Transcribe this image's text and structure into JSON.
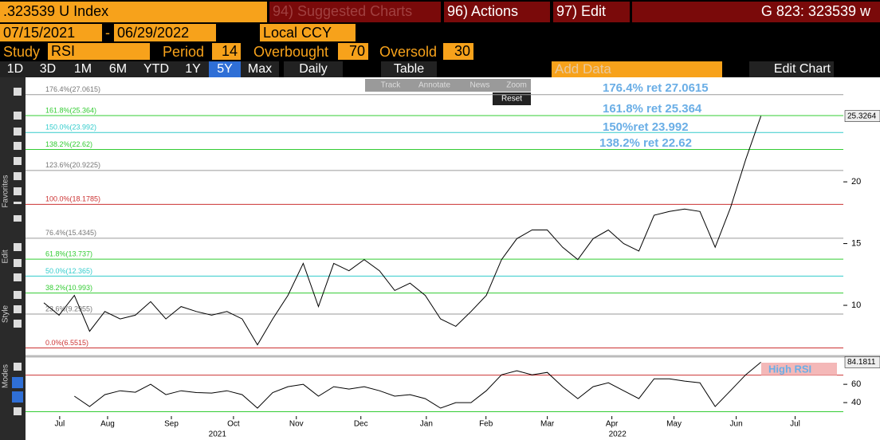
{
  "toolbar": {
    "security": ".323539 U Index",
    "suggested": "94) Suggested Charts",
    "actions": "96) Actions",
    "edit": "97) Edit",
    "function": "G 823: 323539 w",
    "start_date": "07/15/2021",
    "date_sep": "-",
    "end_date": "06/29/2022",
    "currency": "Local CCY",
    "study_label": "Study",
    "study": "RSI",
    "period_label": "Period",
    "period": 14,
    "overbought_label": "Overbought",
    "overbought": 70,
    "oversold_label": "Oversold",
    "oversold": 30,
    "ranges": [
      "1D",
      "3D",
      "1M",
      "6M",
      "YTD",
      "1Y",
      "5Y",
      "Max"
    ],
    "frequency": "Daily",
    "table": "Table",
    "add_data": "Add Data",
    "edit_chart": "Edit Chart"
  },
  "sidebar": {
    "favorites": "Favorites",
    "edit": "Edit",
    "style": "Style",
    "modes": "Modes"
  },
  "chart_menu": {
    "items": [
      "Track",
      "Annotate",
      "News",
      "Zoom"
    ],
    "reset": "Reset"
  },
  "chart_data": [
    {
      "type": "line",
      "series": [
        {
          "color": "#000000",
          "values": [
            10.2,
            9.2,
            10.8,
            7.9,
            9.5,
            8.9,
            9.2,
            10.3,
            8.9,
            9.9,
            9.5,
            9.2,
            9.5,
            8.9,
            6.8,
            8.9,
            10.8,
            13.4,
            9.9,
            13.4,
            12.8,
            13.7,
            12.8,
            11.2,
            11.8,
            10.8,
            8.9,
            8.3,
            9.5,
            10.8,
            13.7,
            15.4,
            16.1,
            16.1,
            14.7,
            13.7,
            15.4,
            16.1,
            15.0,
            14.4,
            17.3,
            17.6,
            17.8,
            17.6,
            14.7,
            17.9,
            21.8,
            25.3264
          ]
        }
      ],
      "xlim": [
        -1.2,
        52.4
      ],
      "ylim": [
        6,
        28.4
      ],
      "yticks": [
        10,
        15,
        20
      ],
      "levels": [
        {
          "value": 27.0615,
          "label": "176.4%(27.0615)",
          "color": "#9a9a9a"
        },
        {
          "value": 25.364,
          "label": "161.8%(25.364)",
          "color": "#33cc33"
        },
        {
          "value": 23.992,
          "label": "150.0%(23.992)",
          "color": "#33cccc"
        },
        {
          "value": 22.62,
          "label": "138.2%(22.62)",
          "color": "#33cc33"
        },
        {
          "value": 20.9225,
          "label": "123.6%(20.9225)",
          "color": "#9a9a9a"
        },
        {
          "value": 18.1785,
          "label": "100.0%(18.1785)",
          "color": "#cc3333"
        },
        {
          "value": 15.4345,
          "label": "76.4%(15.4345)",
          "color": "#9a9a9a"
        },
        {
          "value": 13.737,
          "label": "61.8%(13.737)",
          "color": "#33cc33"
        },
        {
          "value": 12.365,
          "label": "50.0%(12.365)",
          "color": "#33cccc"
        },
        {
          "value": 10.993,
          "label": "38.2%(10.993)",
          "color": "#33cc33"
        },
        {
          "value": 9.2955,
          "label": "23.6%(9.2955)",
          "color": "#9a9a9a"
        },
        {
          "value": 6.5515,
          "label": "0.0%(6.5515)",
          "color": "#cc3333"
        }
      ],
      "annotations": [
        "176.4% ret 27.0615",
        "161.8% ret 25.364",
        "150%ret 23.992",
        "138.2% ret 22.62"
      ]
    },
    {
      "type": "line",
      "series": [
        {
          "color": "#000000",
          "values": [
            null,
            null,
            47,
            35.7,
            48.7,
            53,
            51.3,
            60,
            48.7,
            53,
            51,
            50.4,
            53,
            48.7,
            34,
            51,
            57.4,
            60,
            47,
            57.4,
            54.8,
            57.4,
            53,
            47,
            48.7,
            44.3,
            34,
            40,
            40,
            53,
            70.4,
            74.8,
            70.4,
            73,
            57.4,
            44.3,
            57.4,
            61.7,
            53,
            44.3,
            66,
            66,
            63.5,
            61.7,
            35.7,
            53,
            70.4,
            84.1811
          ]
        }
      ],
      "xlim": [
        -1.2,
        52.4
      ],
      "ylim": [
        27,
        88
      ],
      "yticks": [
        40,
        60
      ],
      "xticks": [
        {
          "value": 1.04,
          "label": "Jul"
        },
        {
          "value": 4.18,
          "label": "Aug"
        },
        {
          "value": 8.36,
          "label": "Sep"
        },
        {
          "value": 12.43,
          "label": "Oct"
        },
        {
          "value": 16.55,
          "label": "Nov"
        },
        {
          "value": 20.78,
          "label": "Dec"
        },
        {
          "value": 25.07,
          "label": "Jan"
        },
        {
          "value": 28.98,
          "label": "Feb"
        },
        {
          "value": 33.0,
          "label": "Mar"
        },
        {
          "value": 37.23,
          "label": "Apr"
        },
        {
          "value": 41.3,
          "label": "May"
        },
        {
          "value": 45.38,
          "label": "Jun"
        },
        {
          "value": 49.24,
          "label": "Jul"
        }
      ],
      "year_ticks": [
        {
          "value": 11.38,
          "label": "2021"
        },
        {
          "value": 37.6,
          "label": "2022"
        }
      ],
      "annotation": "High RSI"
    }
  ]
}
